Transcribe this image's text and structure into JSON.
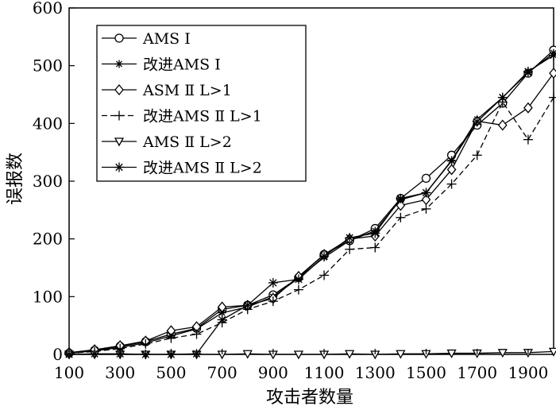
{
  "chart_data": {
    "type": "line",
    "xlabel": "攻击者数量",
    "ylabel": "误报数",
    "xlim": [
      100,
      2000
    ],
    "ylim": [
      0,
      600
    ],
    "x_ticks": [
      100,
      300,
      500,
      700,
      900,
      1100,
      1300,
      1500,
      1700,
      1900
    ],
    "y_ticks": [
      0,
      100,
      200,
      300,
      400,
      500,
      600
    ],
    "x": [
      100,
      200,
      300,
      400,
      500,
      600,
      700,
      800,
      900,
      1000,
      1100,
      1200,
      1300,
      1400,
      1500,
      1600,
      1700,
      1800,
      1900,
      2000
    ],
    "legend_position": "top-left",
    "series": [
      {
        "name": "AMS Ⅰ",
        "marker": "circle",
        "dash": "solid",
        "values": [
          2,
          7,
          14,
          22,
          35,
          45,
          78,
          85,
          103,
          133,
          173,
          197,
          218,
          270,
          305,
          345,
          397,
          435,
          487,
          527
        ]
      },
      {
        "name": "改进AMS Ⅰ",
        "marker": "star",
        "dash": "solid",
        "values": [
          2,
          6,
          12,
          20,
          32,
          44,
          72,
          82,
          100,
          132,
          168,
          197,
          214,
          268,
          280,
          336,
          407,
          445,
          488,
          522
        ]
      },
      {
        "name": "ASM Ⅱ L>1",
        "marker": "diamond",
        "dash": "solid",
        "values": [
          3,
          8,
          15,
          23,
          41,
          48,
          82,
          85,
          97,
          135,
          173,
          200,
          205,
          258,
          268,
          320,
          404,
          397,
          427,
          487
        ]
      },
      {
        "name": "改进AMS Ⅱ L>1",
        "marker": "plus",
        "dash": "dashed",
        "values": [
          2,
          5,
          10,
          18,
          28,
          35,
          55,
          78,
          92,
          112,
          137,
          182,
          185,
          237,
          252,
          295,
          345,
          437,
          372,
          445
        ]
      },
      {
        "name": "AMS Ⅱ L>2",
        "marker": "triangle-down",
        "dash": "solid",
        "values": [
          0,
          0,
          0,
          0,
          0,
          0,
          0,
          1,
          0,
          0,
          0,
          1,
          0,
          1,
          1,
          2,
          2,
          3,
          3,
          5
        ]
      },
      {
        "name": "改进AMS Ⅱ L>2",
        "marker": "asterisk",
        "dash": "solid",
        "values": [
          0,
          1,
          1,
          0,
          0,
          1,
          60,
          85,
          124,
          130,
          170,
          202,
          210,
          270,
          280,
          335,
          403,
          445,
          490,
          518
        ]
      }
    ]
  }
}
